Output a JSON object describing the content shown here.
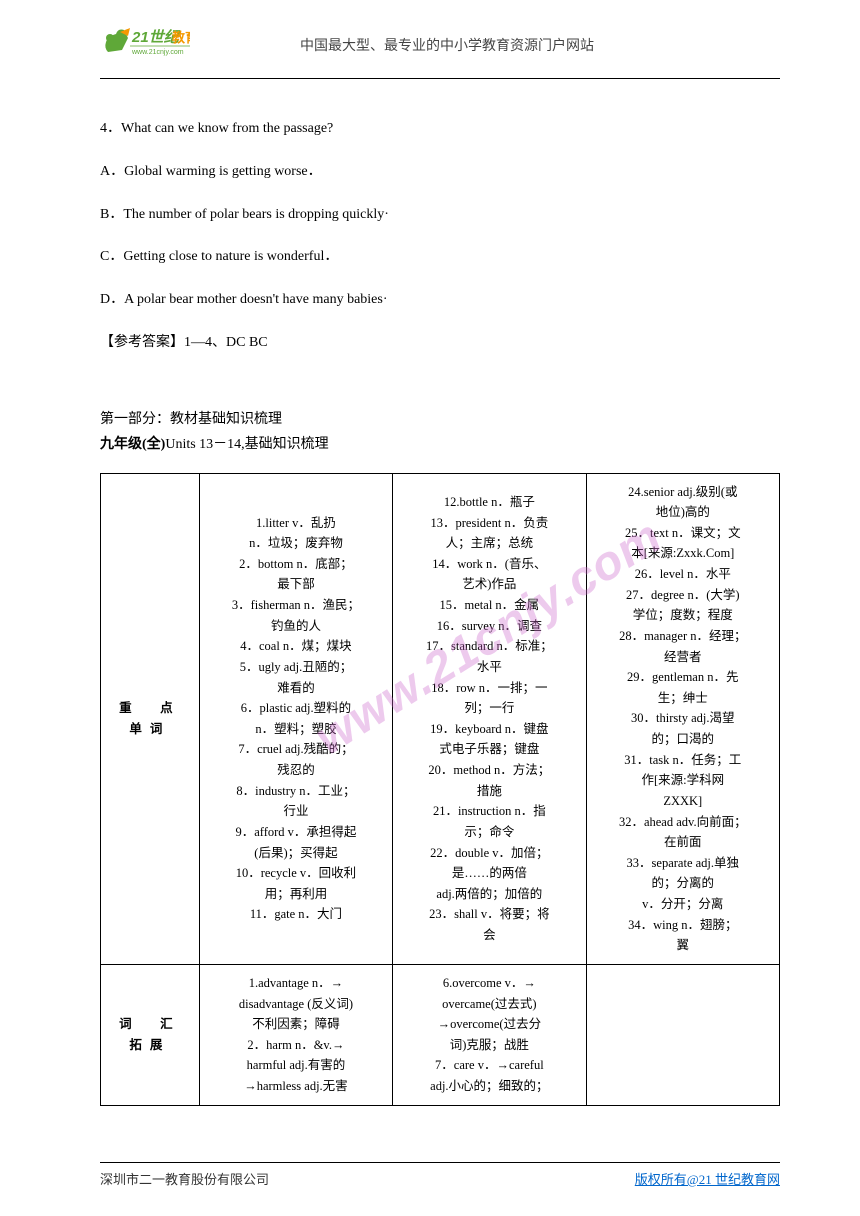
{
  "header": {
    "logo_text_top": "21世纪教育",
    "logo_url": "www.21cnjy.com",
    "tagline": "中国最大型、最专业的中小学教育资源门户网站"
  },
  "question": {
    "q4": "4．What can we know from the passage?",
    "optA": "A．Global warming is getting worse．",
    "optB": "B．The number of polar bears is dropping quickly·",
    "optC": "C．Getting close to nature is wonderful．",
    "optD": "D．A polar bear mother doesn't have many babies·",
    "answer": "【参考答案】1—4、DC BC"
  },
  "section": {
    "title": "第一部分：教材基础知识梳理",
    "subtitle_bold": "九年级(全)",
    "subtitle_rest": "Units 13－14,基础知识梳理"
  },
  "table": {
    "row1_label": "重　点　单词",
    "row1_col1": [
      "1.litter v．乱扔",
      "n．垃圾；废弃物",
      "2．bottom n．底部；",
      "最下部",
      "3．fisherman n．渔民；",
      "钓鱼的人",
      "4．coal n．煤；煤块",
      "5．ugly adj.丑陋的；",
      "难看的",
      "6．plastic adj.塑料的",
      "n．塑料；塑胶",
      "7．cruel adj.残酷的；",
      "残忍的",
      "8．industry n．工业；",
      "行业",
      "9．afford v．承担得起",
      "(后果)；买得起",
      "10．recycle v．回收利",
      "用；再利用",
      "11．gate n．大门"
    ],
    "row1_col2": [
      "12.bottle n．瓶子",
      "13．president n．负责",
      "人；主席；总统",
      "14．work n．(音乐、",
      "艺术)作品",
      "15．metal n．金属",
      "16．survey n．调查",
      "17．standard n．标准；",
      "水平",
      "18．row n．一排；一",
      "列；一行",
      "19．keyboard n．键盘",
      "式电子乐器；键盘",
      "20．method n．方法；",
      "措施",
      "21．instruction n．指",
      "示；命令",
      "22．double v．加倍；",
      "是……的两倍",
      "adj.两倍的；加倍的",
      "23．shall v．将要；将",
      "会"
    ],
    "row1_col3": [
      "24.senior adj.级别(或",
      "地位)高的",
      "25．text n．课文；文",
      "本[来源:Zxxk.Com]",
      "26．level n．水平",
      "27．degree n．(大学)",
      "学位；度数；程度",
      "28．manager n．经理；",
      "经营者",
      "29．gentleman n．先",
      "生；绅士",
      "30．thirsty adj.渴望",
      "的；口渴的",
      "31．task n．任务；工",
      "作[来源:学科网",
      "ZXXK]",
      "32．ahead adv.向前面；",
      "在前面",
      "33．separate adj.单独",
      "的；分离的",
      "v．分开；分离",
      "34．wing n．翅膀；",
      "翼"
    ],
    "row2_label": "词　汇　拓展",
    "row2_col1": [
      "1.advantage n．→",
      "disadvantage (反义词)",
      "不利因素；障碍",
      "2．harm n．&v.→",
      "harmful adj.有害的",
      "→harmless adj.无害"
    ],
    "row2_col2": [
      "6.overcome v．→",
      "overcame(过去式)",
      "→overcome(过去分",
      "词)克服；战胜",
      "7．care v．→careful",
      "adj.小心的；细致的；"
    ],
    "row2_col3": []
  },
  "watermark": "www.21cnjy.com",
  "footer": {
    "left": "深圳市二一教育股份有限公司",
    "right": "版权所有@21 世纪教育网"
  },
  "colors": {
    "text": "#000000",
    "background": "#ffffff",
    "link": "#0066cc",
    "watermark": "rgba(204,102,204,0.35)",
    "logo_green": "#5fa838",
    "logo_orange": "#f39800"
  }
}
